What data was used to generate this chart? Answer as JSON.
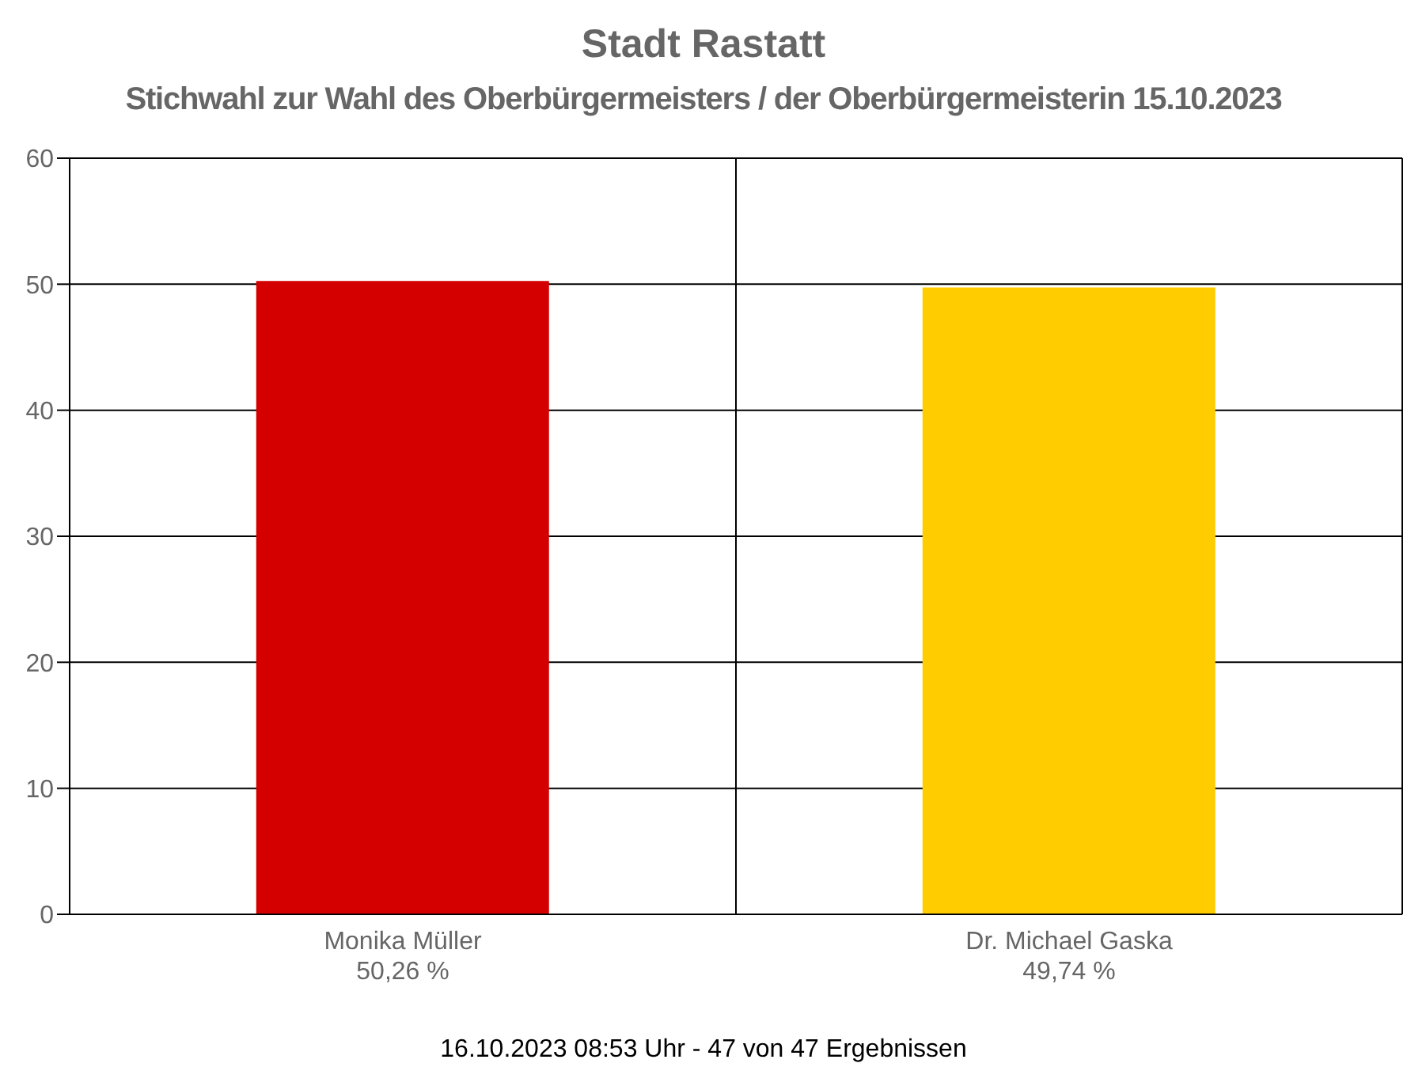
{
  "chart_data": {
    "type": "bar",
    "title": "Stadt Rastatt",
    "subtitle": "Stichwahl zur Wahl des Oberbürgermeisters / der Oberbürgermeisterin 15.10.2023",
    "categories": [
      "Monika Müller",
      "Dr. Michael Gaska"
    ],
    "values": [
      50.26,
      49.74
    ],
    "colors": [
      "#d40000",
      "#ffcc00"
    ],
    "value_labels": [
      "50,26 %",
      "49,74 %"
    ],
    "ylim": [
      0,
      60
    ],
    "yticks": [
      0,
      10,
      20,
      30,
      40,
      50,
      60
    ],
    "grid": true,
    "annotations": [
      "16.10.2023 08:53 Uhr - 47 von 47 Ergebnissen"
    ]
  }
}
